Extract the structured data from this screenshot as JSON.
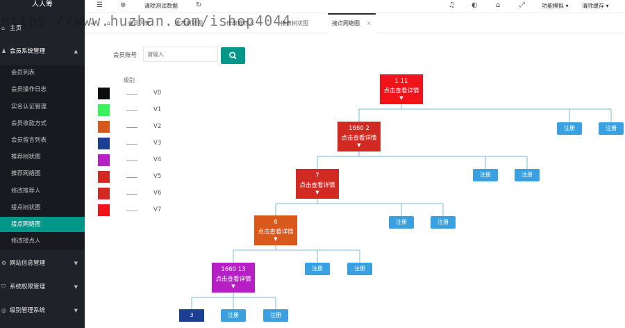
{
  "app": {
    "brand": "人人筹"
  },
  "watermark": "https://www.huzhan.com/ishop4044",
  "sidebar": {
    "home": "主页",
    "member_group": "会员系统管理",
    "items": [
      {
        "label": "会员列表"
      },
      {
        "label": "会员操作日志"
      },
      {
        "label": "实名认证管理"
      },
      {
        "label": "会员收款方式"
      },
      {
        "label": "会员留言列表"
      },
      {
        "label": "推荐树状图"
      },
      {
        "label": "推荐网络图"
      },
      {
        "label": "修改推荐人"
      },
      {
        "label": "接点树状图"
      },
      {
        "label": "接点网络图",
        "active": true
      },
      {
        "label": "修改接点人"
      }
    ],
    "groups": [
      "网站信息管理",
      "系统权限管理",
      "级别管理系统"
    ]
  },
  "topbar": {
    "clear_test_data": "清除测试数据",
    "feature_simulation": "功能模拟",
    "clear_cache": "清除缓存"
  },
  "tabs": [
    {
      "label": "会员列表"
    },
    {
      "label": "推荐树状图"
    },
    {
      "label": "修改推荐人"
    },
    {
      "label": "接点树状图"
    },
    {
      "label": "接点网络图",
      "active": true
    }
  ],
  "search": {
    "label": "会员账号",
    "placeholder": "请输入"
  },
  "legend": {
    "title": "级别",
    "levels": [
      {
        "name": "V0",
        "color": "#0d0d0d"
      },
      {
        "name": "V1",
        "color": "#3cf25c"
      },
      {
        "name": "V2",
        "color": "#d9581b"
      },
      {
        "name": "V3",
        "color": "#1a3f94"
      },
      {
        "name": "V4",
        "color": "#b61fc4"
      },
      {
        "name": "V5",
        "color": "#d12a23"
      },
      {
        "name": "V6",
        "color": "#d12a23"
      },
      {
        "name": "V7",
        "color": "#f0141a"
      }
    ]
  },
  "tree": {
    "detail_label": "点击查看详情",
    "register_label": "注册",
    "nodes": [
      {
        "id": "1          11",
        "color": "#f0141a"
      },
      {
        "id": "1660       2",
        "color": "#d12a23"
      },
      {
        "id": "7",
        "color": "#d12a23"
      },
      {
        "id": "6",
        "color": "#d9581b"
      },
      {
        "id": "1660       13",
        "color": "#b61fc4"
      }
    ],
    "leaf": {
      "id": "3",
      "color": "#1a3f94"
    }
  }
}
